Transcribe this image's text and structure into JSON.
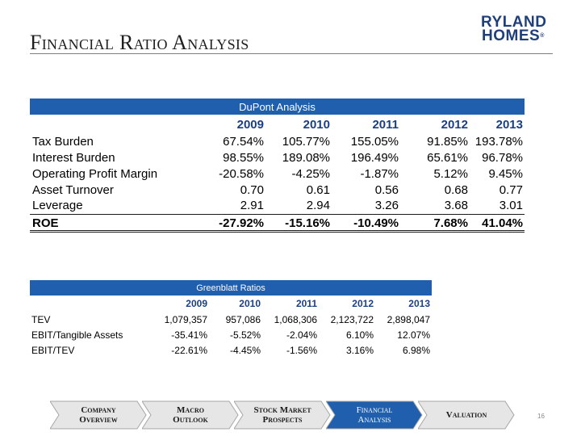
{
  "slide": {
    "title": "Financial Ratio Analysis",
    "page_number": "16",
    "logo": {
      "line1": "RYLAND",
      "line2": "HOMES",
      "mark": "®"
    }
  },
  "dupont": {
    "title": "DuPont Analysis",
    "years": [
      "2009",
      "2010",
      "2011",
      "2012",
      "2013"
    ],
    "rows": [
      {
        "label": "Tax Burden",
        "values": [
          "67.54%",
          "105.77%",
          "155.05%",
          "91.85%",
          "193.78%"
        ]
      },
      {
        "label": "Interest Burden",
        "values": [
          "98.55%",
          "189.08%",
          "196.49%",
          "65.61%",
          "96.78%"
        ]
      },
      {
        "label": "Operating Profit Margin",
        "values": [
          "-20.58%",
          "-4.25%",
          "-1.87%",
          "5.12%",
          "9.45%"
        ]
      },
      {
        "label": "Asset Turnover",
        "values": [
          "0.70",
          "0.61",
          "0.56",
          "0.68",
          "0.77"
        ]
      },
      {
        "label": "Leverage",
        "values": [
          "2.91",
          "2.94",
          "3.26",
          "3.68",
          "3.01"
        ]
      }
    ],
    "total": {
      "label": "ROE",
      "values": [
        "-27.92%",
        "-15.16%",
        "-10.49%",
        "7.68%",
        "41.04%"
      ]
    }
  },
  "greenblatt": {
    "title": "Greenblatt Ratios",
    "years": [
      "2009",
      "2010",
      "2011",
      "2012",
      "2013"
    ],
    "rows": [
      {
        "label": "TEV",
        "values": [
          "1,079,357",
          "957,086",
          "1,068,306",
          "2,123,722",
          "2,898,047"
        ]
      },
      {
        "label": "EBIT/Tangible Assets",
        "values": [
          "-35.41%",
          "-5.52%",
          "-2.04%",
          "6.10%",
          "12.07%"
        ]
      },
      {
        "label": "EBIT/TEV",
        "values": [
          "-22.61%",
          "-4.45%",
          "-1.56%",
          "3.16%",
          "6.98%"
        ]
      }
    ]
  },
  "nav": {
    "items": [
      {
        "line1": "Company",
        "line2": "Overview",
        "active": false
      },
      {
        "line1": "Macro",
        "line2": "Outlook",
        "active": false
      },
      {
        "line1": "Stock Market",
        "line2": "Prospects",
        "active": false
      },
      {
        "line1": "Financial",
        "line2": "Analysis",
        "active": true
      },
      {
        "line1": "Valuation",
        "line2": "",
        "active": false
      }
    ],
    "colors": {
      "inactive": "#e6e6e6",
      "active": "#1f5fae",
      "border": "#a6a6a6"
    }
  }
}
